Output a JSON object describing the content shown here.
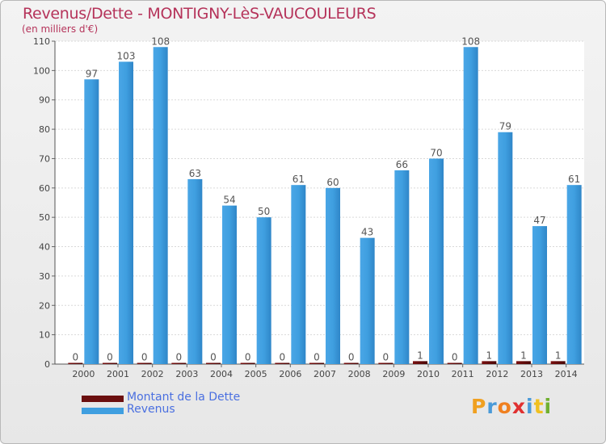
{
  "header": {
    "title": "Revenus/Dette - MONTIGNY-LèS-VAUCOULEURS",
    "subtitle": "(en milliers d'€)"
  },
  "legend": {
    "items": [
      {
        "label": "Montant de la Dette",
        "color": "#6b0f0f"
      },
      {
        "label": "Revenus",
        "color": "#3f9fe0"
      }
    ]
  },
  "logo": {
    "text": "Proxiti",
    "letters": [
      {
        "ch": "P",
        "color": "#f0a020"
      },
      {
        "ch": "r",
        "color": "#4a9ad8"
      },
      {
        "ch": "o",
        "color": "#f08020"
      },
      {
        "ch": "x",
        "color": "#e03030"
      },
      {
        "ch": "i",
        "color": "#4a9ad8"
      },
      {
        "ch": "t",
        "color": "#f0c020"
      },
      {
        "ch": "i",
        "color": "#70b030"
      }
    ]
  },
  "chart_data": {
    "type": "bar",
    "title": "Revenus/Dette - MONTIGNY-LèS-VAUCOULEURS",
    "subtitle": "(en milliers d'€)",
    "xlabel": "",
    "ylabel": "",
    "categories": [
      "2000",
      "2001",
      "2002",
      "2003",
      "2004",
      "2005",
      "2006",
      "2007",
      "2008",
      "2009",
      "2010",
      "2011",
      "2012",
      "2013",
      "2014"
    ],
    "series": [
      {
        "name": "Montant de la Dette",
        "color": "#6b0f0f",
        "values": [
          0,
          0,
          0,
          0,
          0,
          0,
          0,
          0,
          0,
          0,
          1,
          0,
          1,
          1,
          1
        ]
      },
      {
        "name": "Revenus",
        "color": "#3f9fe0",
        "values": [
          97,
          103,
          108,
          63,
          54,
          50,
          61,
          60,
          43,
          66,
          70,
          108,
          79,
          47,
          61
        ]
      }
    ],
    "ylim": [
      0,
      110
    ],
    "yticks": [
      0,
      10,
      20,
      30,
      40,
      50,
      60,
      70,
      80,
      90,
      100,
      110
    ],
    "grid": true,
    "legend_position": "bottom-left"
  }
}
